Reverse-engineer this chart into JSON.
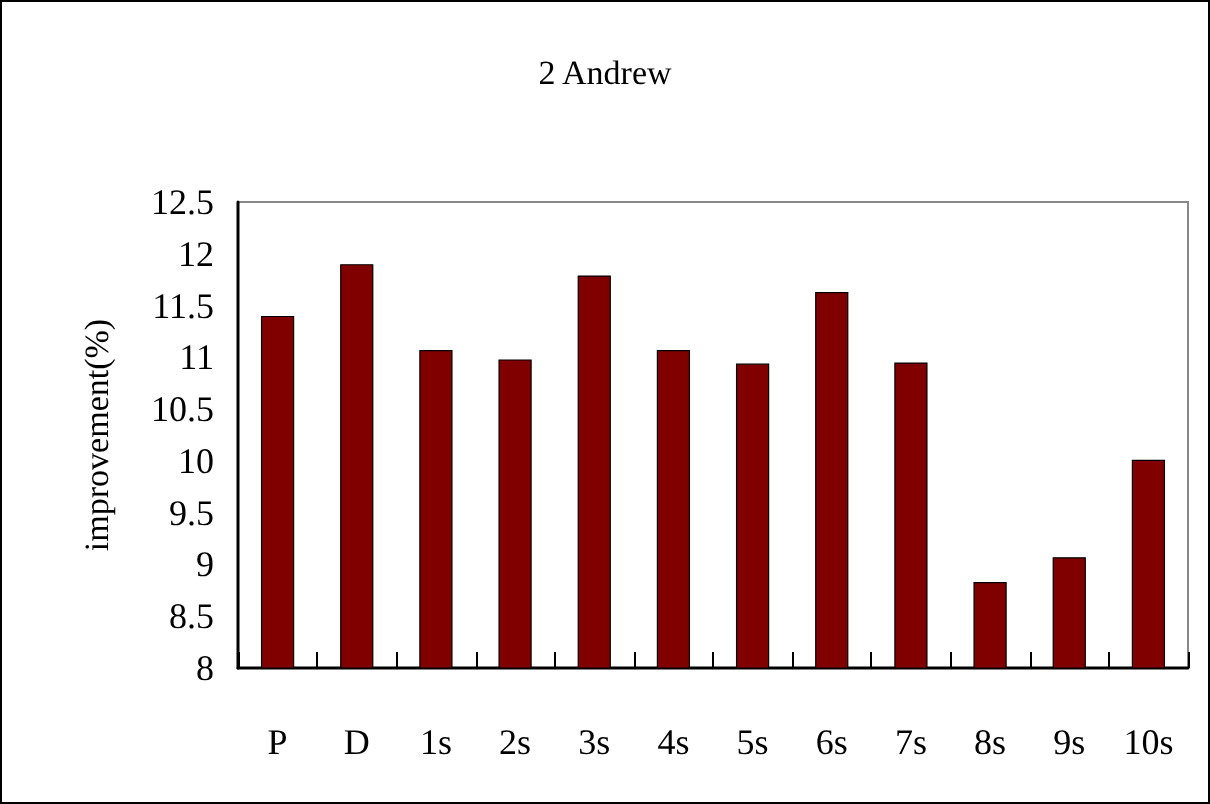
{
  "chart_data": {
    "type": "bar",
    "title": "2 Andrew",
    "ylabel": "improvement(%)",
    "categories": [
      "P",
      "D",
      "1s",
      "2s",
      "3s",
      "4s",
      "5s",
      "6s",
      "7s",
      "8s",
      "9s",
      "10s"
    ],
    "values": [
      11.4,
      11.9,
      11.07,
      10.98,
      11.79,
      11.07,
      10.94,
      11.63,
      10.95,
      8.83,
      9.07,
      10.01
    ],
    "color": "#800000",
    "ylim": [
      8,
      12.5
    ],
    "yticks": [
      8,
      8.5,
      9,
      9.5,
      10,
      10.5,
      11,
      11.5,
      12,
      12.5
    ],
    "grid": false
  }
}
